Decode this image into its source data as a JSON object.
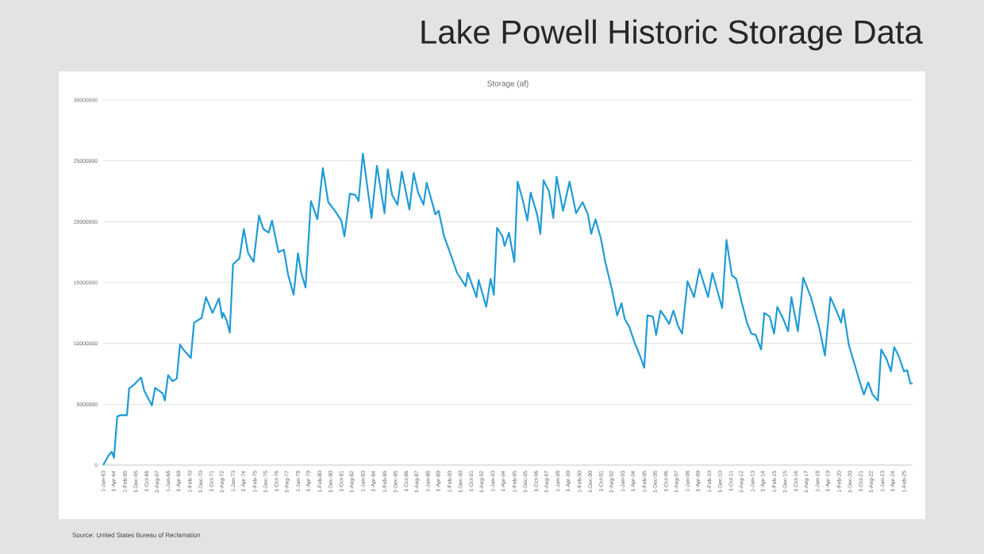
{
  "chart_data": {
    "type": "line",
    "title": "Lake Powell Historic Storage Data",
    "subtitle": "Storage (af)",
    "annotations": [
      "Source: United States Bureau of Reclamation"
    ],
    "x": [
      "1963-06",
      "1963-11",
      "1964-02",
      "1964-04",
      "1964-07",
      "1964-10",
      "1965-04",
      "1965-06",
      "1965-11",
      "1966-05",
      "1966-08",
      "1967-03",
      "1967-06",
      "1968-01",
      "1968-03",
      "1968-06",
      "1968-10",
      "1969-02",
      "1969-05",
      "1969-08",
      "1970-03",
      "1970-06",
      "1971-01",
      "1971-05",
      "1971-11",
      "1972-05",
      "1972-08",
      "1972-09",
      "1972-12",
      "1973-03",
      "1973-06",
      "1973-12",
      "1974-04",
      "1974-08",
      "1975-01",
      "1975-06",
      "1975-10",
      "1976-03",
      "1976-06",
      "1976-12",
      "1977-05",
      "1977-09",
      "1978-02",
      "1978-06",
      "1978-09",
      "1979-01",
      "1979-06",
      "1979-12",
      "1980-05",
      "1980-10",
      "1981-05",
      "1981-10",
      "1982-01",
      "1982-06",
      "1982-11",
      "1983-02",
      "1983-06",
      "1984-02",
      "1984-07",
      "1985-02",
      "1985-05",
      "1985-09",
      "1986-02",
      "1986-06",
      "1987-01",
      "1987-05",
      "1987-09",
      "1988-02",
      "1988-05",
      "1989-01",
      "1989-04",
      "1989-09",
      "1990-04",
      "1990-09",
      "1991-05",
      "1991-07",
      "1992-03",
      "1992-05",
      "1992-12",
      "1993-04",
      "1993-07",
      "1993-10",
      "1994-03",
      "1994-05",
      "1994-09",
      "1995-02",
      "1995-05",
      "1995-10",
      "1996-02",
      "1996-05",
      "1996-11",
      "1997-02",
      "1997-05",
      "1997-10",
      "1998-02",
      "1998-05",
      "1998-11",
      "1999-05",
      "1999-11",
      "2000-05",
      "2000-10",
      "2001-01",
      "2001-05",
      "2001-10",
      "2002-02",
      "2002-08",
      "2003-01",
      "2003-05",
      "2003-08",
      "2003-12",
      "2004-05",
      "2004-10",
      "2005-02",
      "2005-05",
      "2005-10",
      "2006-01",
      "2006-05",
      "2006-09",
      "2007-01",
      "2007-05",
      "2007-09",
      "2008-01",
      "2008-06",
      "2008-12",
      "2009-05",
      "2010-01",
      "2010-05",
      "2011-02",
      "2011-06",
      "2011-11",
      "2012-03",
      "2012-08",
      "2013-01",
      "2013-05",
      "2013-09",
      "2014-02",
      "2014-05",
      "2014-10",
      "2015-02",
      "2015-05",
      "2015-10",
      "2016-03",
      "2016-06",
      "2016-12",
      "2017-05",
      "2017-12",
      "2018-08",
      "2019-01",
      "2019-06",
      "2019-12",
      "2020-04",
      "2020-06",
      "2020-11",
      "2021-04",
      "2021-09",
      "2022-01",
      "2022-05",
      "2022-09",
      "2023-02",
      "2023-05",
      "2023-10",
      "2024-02",
      "2024-05",
      "2024-09",
      "2025-02",
      "2025-05",
      "2025-08",
      "2025-10"
    ],
    "series": [
      {
        "color": "#1f9bd7",
        "values": [
          0,
          800000,
          1100000,
          600000,
          4000000,
          4100000,
          4100000,
          6300000,
          6650000,
          7200000,
          6100000,
          4900000,
          6350000,
          5900000,
          5300000,
          7400000,
          6900000,
          7100000,
          9900000,
          9500000,
          8800000,
          11700000,
          12100000,
          13800000,
          12500000,
          13700000,
          12100000,
          12500000,
          11900000,
          10900000,
          16500000,
          17000000,
          19400000,
          17400000,
          16700000,
          20500000,
          19400000,
          19100000,
          20100000,
          17500000,
          17700000,
          15600000,
          14000000,
          17400000,
          15800000,
          14600000,
          21700000,
          20200000,
          24400000,
          21600000,
          20800000,
          20100000,
          18800000,
          22300000,
          22200000,
          21700000,
          25600000,
          20300000,
          24600000,
          20700000,
          24300000,
          22200000,
          21400000,
          24100000,
          21000000,
          24000000,
          22400000,
          21400000,
          23200000,
          20600000,
          20900000,
          18800000,
          17100000,
          15800000,
          14700000,
          15800000,
          13800000,
          15200000,
          13000000,
          15300000,
          14000000,
          19500000,
          18800000,
          18000000,
          19100000,
          16700000,
          23300000,
          21700000,
          20100000,
          22400000,
          20600000,
          19000000,
          23400000,
          22500000,
          20300000,
          23700000,
          20900000,
          23300000,
          20700000,
          21600000,
          20600000,
          19000000,
          20200000,
          18600000,
          16700000,
          14500000,
          12300000,
          13300000,
          12000000,
          11400000,
          10100000,
          9000000,
          8000000,
          12300000,
          12200000,
          10700000,
          12700000,
          12200000,
          11600000,
          12700000,
          11500000,
          10800000,
          15100000,
          13800000,
          16100000,
          13800000,
          15800000,
          12900000,
          18500000,
          15600000,
          15300000,
          13400000,
          11700000,
          10800000,
          10700000,
          9500000,
          12500000,
          12200000,
          10800000,
          13000000,
          12100000,
          11000000,
          13800000,
          11000000,
          15400000,
          13800000,
          11200000,
          9000000,
          13800000,
          12600000,
          11700000,
          12800000,
          9900000,
          8400000,
          6900000,
          5800000,
          6800000,
          5800000,
          5300000,
          9500000,
          8700000,
          7700000,
          9700000,
          9000000,
          7700000,
          7800000,
          6700000,
          6700000
        ]
      }
    ],
    "xlim": [
      "1963-06",
      "2025-10"
    ],
    "ylim": [
      0,
      30000000
    ],
    "yticks": [
      0,
      5000000,
      10000000,
      15000000,
      20000000,
      25000000,
      30000000
    ],
    "xticks": [
      {
        "value": "1963-06",
        "label": "1-Jun-63"
      },
      {
        "value": "1964-04",
        "label": "1-Apr-64"
      },
      {
        "value": "1965-02",
        "label": "1-Feb-65"
      },
      {
        "value": "1965-12",
        "label": "1-Dec-65"
      },
      {
        "value": "1966-10",
        "label": "1-Oct-66"
      },
      {
        "value": "1967-08",
        "label": "1-Aug-67"
      },
      {
        "value": "1968-06",
        "label": "1-Jun-68"
      },
      {
        "value": "1969-04",
        "label": "1-Apr-69"
      },
      {
        "value": "1970-02",
        "label": "1-Feb-70"
      },
      {
        "value": "1970-12",
        "label": "1-Dec-70"
      },
      {
        "value": "1971-10",
        "label": "1-Oct-71"
      },
      {
        "value": "1972-08",
        "label": "1-Aug-72"
      },
      {
        "value": "1973-06",
        "label": "1-Jun-73"
      },
      {
        "value": "1974-04",
        "label": "1-Apr-74"
      },
      {
        "value": "1975-02",
        "label": "1-Feb-75"
      },
      {
        "value": "1975-12",
        "label": "1-Dec-75"
      },
      {
        "value": "1976-10",
        "label": "1-Oct-76"
      },
      {
        "value": "1977-08",
        "label": "1-Aug-77"
      },
      {
        "value": "1978-06",
        "label": "1-Jun-78"
      },
      {
        "value": "1979-04",
        "label": "1-Apr-79"
      },
      {
        "value": "1980-02",
        "label": "1-Feb-80"
      },
      {
        "value": "1980-12",
        "label": "1-Dec-80"
      },
      {
        "value": "1981-10",
        "label": "1-Oct-81"
      },
      {
        "value": "1982-08",
        "label": "1-Aug-82"
      },
      {
        "value": "1983-06",
        "label": "1-Jun-83"
      },
      {
        "value": "1984-04",
        "label": "1-Apr-84"
      },
      {
        "value": "1985-02",
        "label": "1-Feb-85"
      },
      {
        "value": "1985-12",
        "label": "1-Dec-85"
      },
      {
        "value": "1986-10",
        "label": "1-Oct-86"
      },
      {
        "value": "1987-08",
        "label": "1-Aug-87"
      },
      {
        "value": "1988-06",
        "label": "1-Jun-88"
      },
      {
        "value": "1989-04",
        "label": "1-Apr-89"
      },
      {
        "value": "1990-02",
        "label": "1-Feb-90"
      },
      {
        "value": "1990-12",
        "label": "1-Dec-90"
      },
      {
        "value": "1991-10",
        "label": "1-Oct-91"
      },
      {
        "value": "1992-08",
        "label": "1-Aug-92"
      },
      {
        "value": "1993-06",
        "label": "1-Jun-93"
      },
      {
        "value": "1994-04",
        "label": "1-Apr-94"
      },
      {
        "value": "1995-02",
        "label": "1-Feb-95"
      },
      {
        "value": "1995-12",
        "label": "1-Dec-95"
      },
      {
        "value": "1996-10",
        "label": "1-Oct-96"
      },
      {
        "value": "1997-08",
        "label": "1-Aug-97"
      },
      {
        "value": "1998-06",
        "label": "1-Jun-98"
      },
      {
        "value": "1999-04",
        "label": "1-Apr-99"
      },
      {
        "value": "2000-02",
        "label": "1-Feb-00"
      },
      {
        "value": "2000-12",
        "label": "1-Dec-00"
      },
      {
        "value": "2001-10",
        "label": "1-Oct-01"
      },
      {
        "value": "2002-08",
        "label": "1-Aug-02"
      },
      {
        "value": "2003-06",
        "label": "1-Jun-03"
      },
      {
        "value": "2004-04",
        "label": "1-Apr-04"
      },
      {
        "value": "2005-02",
        "label": "1-Feb-05"
      },
      {
        "value": "2005-12",
        "label": "1-Dec-05"
      },
      {
        "value": "2006-10",
        "label": "1-Oct-06"
      },
      {
        "value": "2007-08",
        "label": "1-Aug-07"
      },
      {
        "value": "2008-06",
        "label": "1-Jun-08"
      },
      {
        "value": "2009-04",
        "label": "1-Apr-09"
      },
      {
        "value": "2010-02",
        "label": "1-Feb-10"
      },
      {
        "value": "2010-12",
        "label": "1-Dec-10"
      },
      {
        "value": "2011-10",
        "label": "1-Oct-11"
      },
      {
        "value": "2012-08",
        "label": "1-Aug-12"
      },
      {
        "value": "2013-06",
        "label": "1-Jun-13"
      },
      {
        "value": "2014-04",
        "label": "1-Apr-14"
      },
      {
        "value": "2015-02",
        "label": "1-Feb-15"
      },
      {
        "value": "2015-12",
        "label": "1-Dec-15"
      },
      {
        "value": "2016-10",
        "label": "1-Oct-16"
      },
      {
        "value": "2017-08",
        "label": "1-Aug-17"
      },
      {
        "value": "2018-06",
        "label": "1-Jun-18"
      },
      {
        "value": "2019-04",
        "label": "1-Apr-19"
      },
      {
        "value": "2020-02",
        "label": "1-Feb-20"
      },
      {
        "value": "2020-12",
        "label": "1-Dec-20"
      },
      {
        "value": "2021-10",
        "label": "1-Oct-21"
      },
      {
        "value": "2022-08",
        "label": "1-Aug-22"
      },
      {
        "value": "2023-06",
        "label": "1-Jun-23"
      },
      {
        "value": "2024-04",
        "label": "1-Apr-24"
      },
      {
        "value": "2025-02",
        "label": "1-Feb-25"
      }
    ],
    "grid": "y",
    "legend": false,
    "marker": "none",
    "line_style": "solid"
  }
}
